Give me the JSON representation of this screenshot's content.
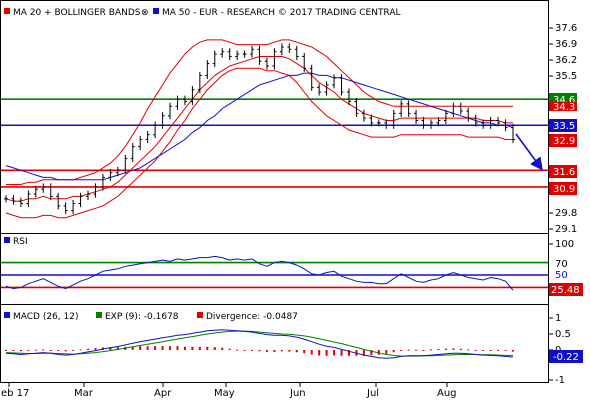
{
  "chart_data": [
    {
      "type": "line",
      "panel": "price",
      "legend": [
        {
          "label": "MA 20 + BOLLINGER BANDS",
          "color": "#e00000"
        },
        {
          "label": "MA 50 - EUR - RESEARCH © 2017 TRADING CENTRAL",
          "color": "#1010c8"
        }
      ],
      "y_ticks": [
        "37.6",
        "36.9",
        "36.2",
        "35.5",
        "29.8",
        "29.1"
      ],
      "ylim": [
        29.1,
        37.9
      ],
      "x_ticks": [
        "eb 17",
        "Mar",
        "Apr",
        "May",
        "Jun",
        "Jul",
        "Aug"
      ],
      "levels": [
        {
          "value": 34.6,
          "label": "34.6",
          "color": "#008000",
          "kind": "resistance"
        },
        {
          "value": 34.3,
          "label": "34.3",
          "color": "#e00000",
          "kind": "last-band"
        },
        {
          "value": 33.5,
          "label": "33.5",
          "color": "#1010c8",
          "kind": "pivot"
        },
        {
          "value": 32.9,
          "label": "32.9",
          "color": "#e00000",
          "kind": "last-price"
        },
        {
          "value": 31.6,
          "label": "31.6",
          "color": "#e00000",
          "kind": "support"
        },
        {
          "value": 30.9,
          "label": "30.9",
          "color": "#e00000",
          "kind": "support"
        }
      ],
      "close": [
        30.4,
        30.3,
        30.2,
        30.6,
        30.8,
        30.9,
        30.5,
        30.1,
        29.9,
        30.2,
        30.5,
        30.6,
        30.9,
        31.3,
        31.5,
        31.6,
        32.1,
        32.6,
        32.9,
        33.1,
        33.5,
        33.9,
        34.3,
        34.6,
        34.5,
        35.0,
        35.6,
        36.1,
        36.5,
        36.6,
        36.4,
        36.5,
        36.5,
        36.7,
        36.2,
        36.0,
        36.6,
        36.8,
        36.7,
        36.4,
        35.9,
        35.1,
        34.9,
        35.2,
        35.5,
        34.9,
        34.5,
        34.0,
        33.8,
        33.6,
        33.6,
        33.5,
        34.0,
        34.4,
        34.0,
        33.7,
        33.5,
        33.6,
        33.7,
        34.0,
        34.3,
        34.1,
        33.8,
        33.6,
        33.5,
        33.7,
        33.6,
        33.4,
        32.9
      ],
      "ma20": [
        30.4,
        30.3,
        30.3,
        30.4,
        30.4,
        30.5,
        30.4,
        30.4,
        30.4,
        30.5,
        30.5,
        30.6,
        30.7,
        30.8,
        30.9,
        31.1,
        31.4,
        31.7,
        32.0,
        32.3,
        32.6,
        33.0,
        33.4,
        33.8,
        34.2,
        34.6,
        35.0,
        35.3,
        35.6,
        35.8,
        36.0,
        36.1,
        36.2,
        36.3,
        36.4,
        36.4,
        36.4,
        36.4,
        36.3,
        36.1,
        35.9,
        35.6,
        35.3,
        35.1,
        34.9,
        34.6,
        34.4,
        34.2,
        34.0,
        33.9,
        33.8,
        33.7,
        33.7,
        33.8,
        33.8,
        33.8,
        33.8,
        33.8,
        33.8,
        33.8,
        33.8,
        33.8,
        33.8,
        33.8,
        33.7,
        33.7,
        33.7,
        33.6,
        33.6
      ],
      "upper_band": [
        31.0,
        31.0,
        31.0,
        31.1,
        31.1,
        31.2,
        31.2,
        31.2,
        31.2,
        31.2,
        31.3,
        31.4,
        31.5,
        31.7,
        31.9,
        32.2,
        32.6,
        33.1,
        33.6,
        34.2,
        34.7,
        35.2,
        35.7,
        36.1,
        36.5,
        36.8,
        37.0,
        37.1,
        37.1,
        37.1,
        37.0,
        36.9,
        36.9,
        36.9,
        36.9,
        36.9,
        37.0,
        37.1,
        37.1,
        37.0,
        36.9,
        36.8,
        36.6,
        36.4,
        36.1,
        35.8,
        35.5,
        35.2,
        34.9,
        34.7,
        34.5,
        34.4,
        34.3,
        34.3,
        34.3,
        34.3,
        34.3,
        34.3,
        34.3,
        34.3,
        34.3,
        34.3,
        34.3,
        34.3,
        34.3,
        34.3,
        34.3,
        34.3,
        34.3
      ],
      "lower_band": [
        29.8,
        29.7,
        29.6,
        29.6,
        29.6,
        29.7,
        29.7,
        29.6,
        29.6,
        29.7,
        29.8,
        29.9,
        30.0,
        30.1,
        30.3,
        30.5,
        30.8,
        31.1,
        31.4,
        31.7,
        32.0,
        32.4,
        32.8,
        33.3,
        33.7,
        34.2,
        34.6,
        35.0,
        35.3,
        35.6,
        35.8,
        35.9,
        35.9,
        35.9,
        35.9,
        35.8,
        35.8,
        35.7,
        35.6,
        35.3,
        34.9,
        34.5,
        34.2,
        33.9,
        33.7,
        33.5,
        33.3,
        33.2,
        33.1,
        33.0,
        33.0,
        33.0,
        33.0,
        33.1,
        33.1,
        33.1,
        33.1,
        33.1,
        33.1,
        33.1,
        33.1,
        33.1,
        33.0,
        33.0,
        33.0,
        33.0,
        33.0,
        32.9,
        32.9
      ],
      "ma50": [
        31.8,
        31.7,
        31.6,
        31.5,
        31.4,
        31.3,
        31.3,
        31.2,
        31.2,
        31.2,
        31.2,
        31.2,
        31.2,
        31.2,
        31.3,
        31.4,
        31.5,
        31.6,
        31.7,
        31.9,
        32.1,
        32.3,
        32.5,
        32.7,
        32.9,
        33.2,
        33.4,
        33.7,
        33.9,
        34.2,
        34.4,
        34.6,
        34.8,
        35.0,
        35.2,
        35.3,
        35.4,
        35.5,
        35.6,
        35.6,
        35.7,
        35.7,
        35.6,
        35.6,
        35.5,
        35.5,
        35.4,
        35.3,
        35.2,
        35.1,
        35.0,
        34.9,
        34.8,
        34.7,
        34.6,
        34.5,
        34.4,
        34.3,
        34.2,
        34.1,
        34.0,
        33.9,
        33.8,
        33.7,
        33.6,
        33.6,
        33.5,
        33.5,
        33.4
      ]
    },
    {
      "type": "line",
      "panel": "rsi",
      "legend": [
        {
          "label": "RSI",
          "color": "#1010c8"
        }
      ],
      "y_ticks": [
        "100",
        "70",
        "50",
        "25.48"
      ],
      "ylim": [
        0,
        100
      ],
      "levels": [
        {
          "value": 70,
          "label": "70",
          "color": "#008000"
        },
        {
          "value": 50,
          "label": "50",
          "color": "#1010c8"
        },
        {
          "value": 30,
          "label": "",
          "color": "#e00000"
        }
      ],
      "last_label": {
        "value": 25.48,
        "label": "25.48",
        "color": "#e00000"
      },
      "values": [
        32,
        28,
        30,
        36,
        40,
        44,
        38,
        32,
        28,
        34,
        40,
        44,
        50,
        56,
        58,
        60,
        64,
        66,
        68,
        70,
        72,
        74,
        72,
        76,
        74,
        76,
        78,
        78,
        80,
        78,
        74,
        76,
        74,
        76,
        68,
        64,
        70,
        72,
        70,
        66,
        60,
        52,
        50,
        54,
        56,
        48,
        44,
        40,
        38,
        38,
        36,
        36,
        44,
        52,
        46,
        40,
        38,
        42,
        44,
        50,
        54,
        50,
        46,
        44,
        42,
        46,
        44,
        40,
        25.48
      ]
    },
    {
      "type": "line",
      "panel": "macd",
      "legend": [
        {
          "label": "MACD (26, 12)",
          "color": "#1010c8"
        },
        {
          "label": "EXP (9): -0.1678",
          "color": "#008000"
        },
        {
          "label": "Divergence: -0.0487",
          "color": "#e00000"
        }
      ],
      "y_ticks": [
        "1",
        "0.5",
        "0",
        "-0.22",
        "-1"
      ],
      "ylim": [
        -1,
        1
      ],
      "last_label": {
        "value": -0.22,
        "label": "-0.22",
        "color": "#1010c8"
      },
      "macd": [
        -0.1,
        -0.12,
        -0.14,
        -0.12,
        -0.1,
        -0.08,
        -0.1,
        -0.14,
        -0.16,
        -0.14,
        -0.1,
        -0.06,
        -0.02,
        0.03,
        0.07,
        0.11,
        0.16,
        0.21,
        0.26,
        0.3,
        0.34,
        0.38,
        0.42,
        0.46,
        0.48,
        0.52,
        0.56,
        0.6,
        0.62,
        0.63,
        0.62,
        0.6,
        0.58,
        0.56,
        0.52,
        0.48,
        0.46,
        0.46,
        0.44,
        0.4,
        0.34,
        0.26,
        0.18,
        0.12,
        0.08,
        0.02,
        -0.04,
        -0.1,
        -0.16,
        -0.2,
        -0.24,
        -0.26,
        -0.24,
        -0.2,
        -0.18,
        -0.18,
        -0.18,
        -0.16,
        -0.14,
        -0.12,
        -0.1,
        -0.1,
        -0.12,
        -0.14,
        -0.16,
        -0.17,
        -0.18,
        -0.2,
        -0.22
      ],
      "signal": [
        -0.08,
        -0.09,
        -0.1,
        -0.11,
        -0.11,
        -0.1,
        -0.1,
        -0.11,
        -0.12,
        -0.13,
        -0.12,
        -0.1,
        -0.08,
        -0.05,
        -0.02,
        0.02,
        0.06,
        0.1,
        0.14,
        0.18,
        0.22,
        0.26,
        0.3,
        0.34,
        0.38,
        0.42,
        0.46,
        0.5,
        0.53,
        0.56,
        0.58,
        0.59,
        0.59,
        0.58,
        0.56,
        0.54,
        0.52,
        0.5,
        0.49,
        0.47,
        0.44,
        0.4,
        0.35,
        0.3,
        0.25,
        0.2,
        0.14,
        0.08,
        0.02,
        -0.04,
        -0.09,
        -0.14,
        -0.17,
        -0.19,
        -0.19,
        -0.19,
        -0.18,
        -0.18,
        -0.17,
        -0.16,
        -0.15,
        -0.14,
        -0.14,
        -0.14,
        -0.15,
        -0.15,
        -0.16,
        -0.17,
        -0.17
      ],
      "divergence": [
        -0.02,
        -0.03,
        -0.04,
        -0.01,
        0.01,
        0.02,
        0.0,
        -0.03,
        -0.04,
        -0.01,
        0.02,
        0.04,
        0.06,
        0.08,
        0.09,
        0.09,
        0.1,
        0.11,
        0.12,
        0.12,
        0.12,
        0.12,
        0.12,
        0.12,
        0.1,
        0.1,
        0.1,
        0.1,
        0.09,
        0.07,
        0.04,
        0.01,
        -0.01,
        -0.02,
        -0.04,
        -0.06,
        -0.06,
        -0.04,
        -0.05,
        -0.07,
        -0.1,
        -0.14,
        -0.17,
        -0.18,
        -0.17,
        -0.18,
        -0.18,
        -0.18,
        -0.18,
        -0.16,
        -0.15,
        -0.12,
        -0.07,
        -0.01,
        0.01,
        0.01,
        0.0,
        0.02,
        0.03,
        0.04,
        0.05,
        0.04,
        0.02,
        0.0,
        -0.01,
        -0.02,
        -0.02,
        -0.03,
        -0.05
      ]
    }
  ]
}
